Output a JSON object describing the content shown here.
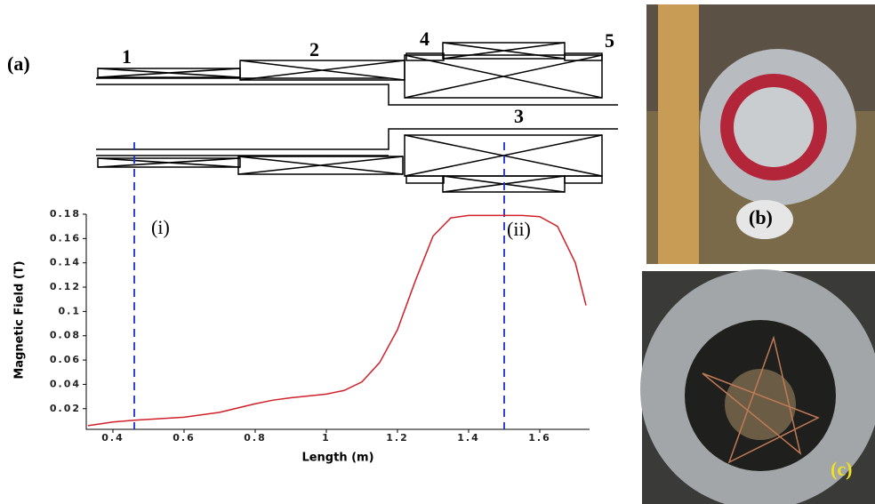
{
  "figure": {
    "panel_labels": [
      "(a)",
      "(b)",
      "(c)"
    ],
    "component_labels": [
      "1",
      "2",
      "3",
      "4",
      "5"
    ],
    "position_labels": [
      "(i)",
      "(ii)"
    ]
  },
  "chart_data": {
    "type": "line",
    "xlabel": "Length (m)",
    "ylabel": "Magnetic Field (T)",
    "x": [
      0.33,
      0.4,
      0.46,
      0.6,
      0.7,
      0.8,
      0.85,
      0.9,
      1.0,
      1.05,
      1.1,
      1.15,
      1.2,
      1.25,
      1.3,
      1.35,
      1.4,
      1.5,
      1.55,
      1.6,
      1.65,
      1.7,
      1.73
    ],
    "series": [
      {
        "color": "#d0202a",
        "values": [
          0.006,
          0.009,
          0.0105,
          0.013,
          0.017,
          0.024,
          0.027,
          0.029,
          0.032,
          0.035,
          0.042,
          0.058,
          0.085,
          0.125,
          0.162,
          0.177,
          0.179,
          0.179,
          0.179,
          0.178,
          0.17,
          0.14,
          0.105
        ]
      }
    ],
    "xlim": [
      0.325,
      1.74
    ],
    "ylim": [
      0.003,
      0.18
    ],
    "xticks": [
      0.4,
      0.6,
      0.8,
      1,
      1.2,
      1.4,
      1.6
    ],
    "yticks": [
      0.02,
      0.04,
      0.06,
      0.08,
      0.1,
      0.12,
      0.14,
      0.16,
      0.18
    ],
    "vlines": [
      0.46,
      1.5
    ],
    "vline_color": "#1a2fd0"
  }
}
